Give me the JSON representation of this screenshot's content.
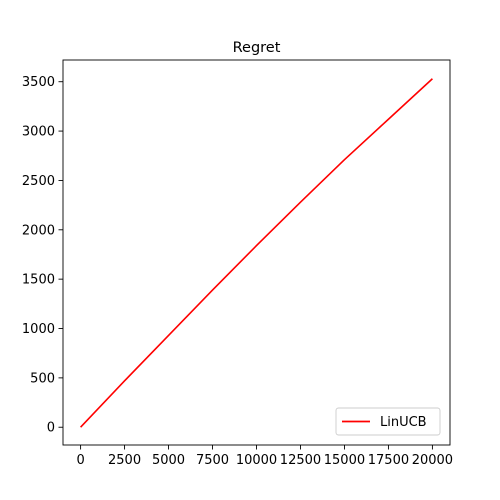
{
  "chart_data": {
    "type": "line",
    "title": "Regret",
    "xlabel": "",
    "ylabel": "",
    "xlim": [
      -1000,
      21000
    ],
    "ylim": [
      -180,
      3720
    ],
    "x_ticks": [
      0,
      2500,
      5000,
      7500,
      10000,
      12500,
      15000,
      17500,
      20000
    ],
    "x_tick_labels": [
      "0",
      "2500",
      "5000",
      "7500",
      "10000",
      "12500",
      "15000",
      "17500",
      "20000"
    ],
    "y_ticks": [
      0,
      500,
      1000,
      1500,
      2000,
      2500,
      3000,
      3500
    ],
    "y_tick_labels": [
      "0",
      "500",
      "1000",
      "1500",
      "2000",
      "2500",
      "3000",
      "3500"
    ],
    "grid": false,
    "legend": {
      "placement": "lower right",
      "entries": [
        "LinUCB"
      ]
    },
    "series": [
      {
        "name": "LinUCB",
        "color": "#ff0000",
        "x": [
          0,
          2500,
          5000,
          7500,
          10000,
          12500,
          15000,
          17500,
          20000
        ],
        "y": [
          0,
          470,
          930,
          1390,
          1840,
          2280,
          2710,
          3120,
          3530
        ]
      }
    ]
  }
}
